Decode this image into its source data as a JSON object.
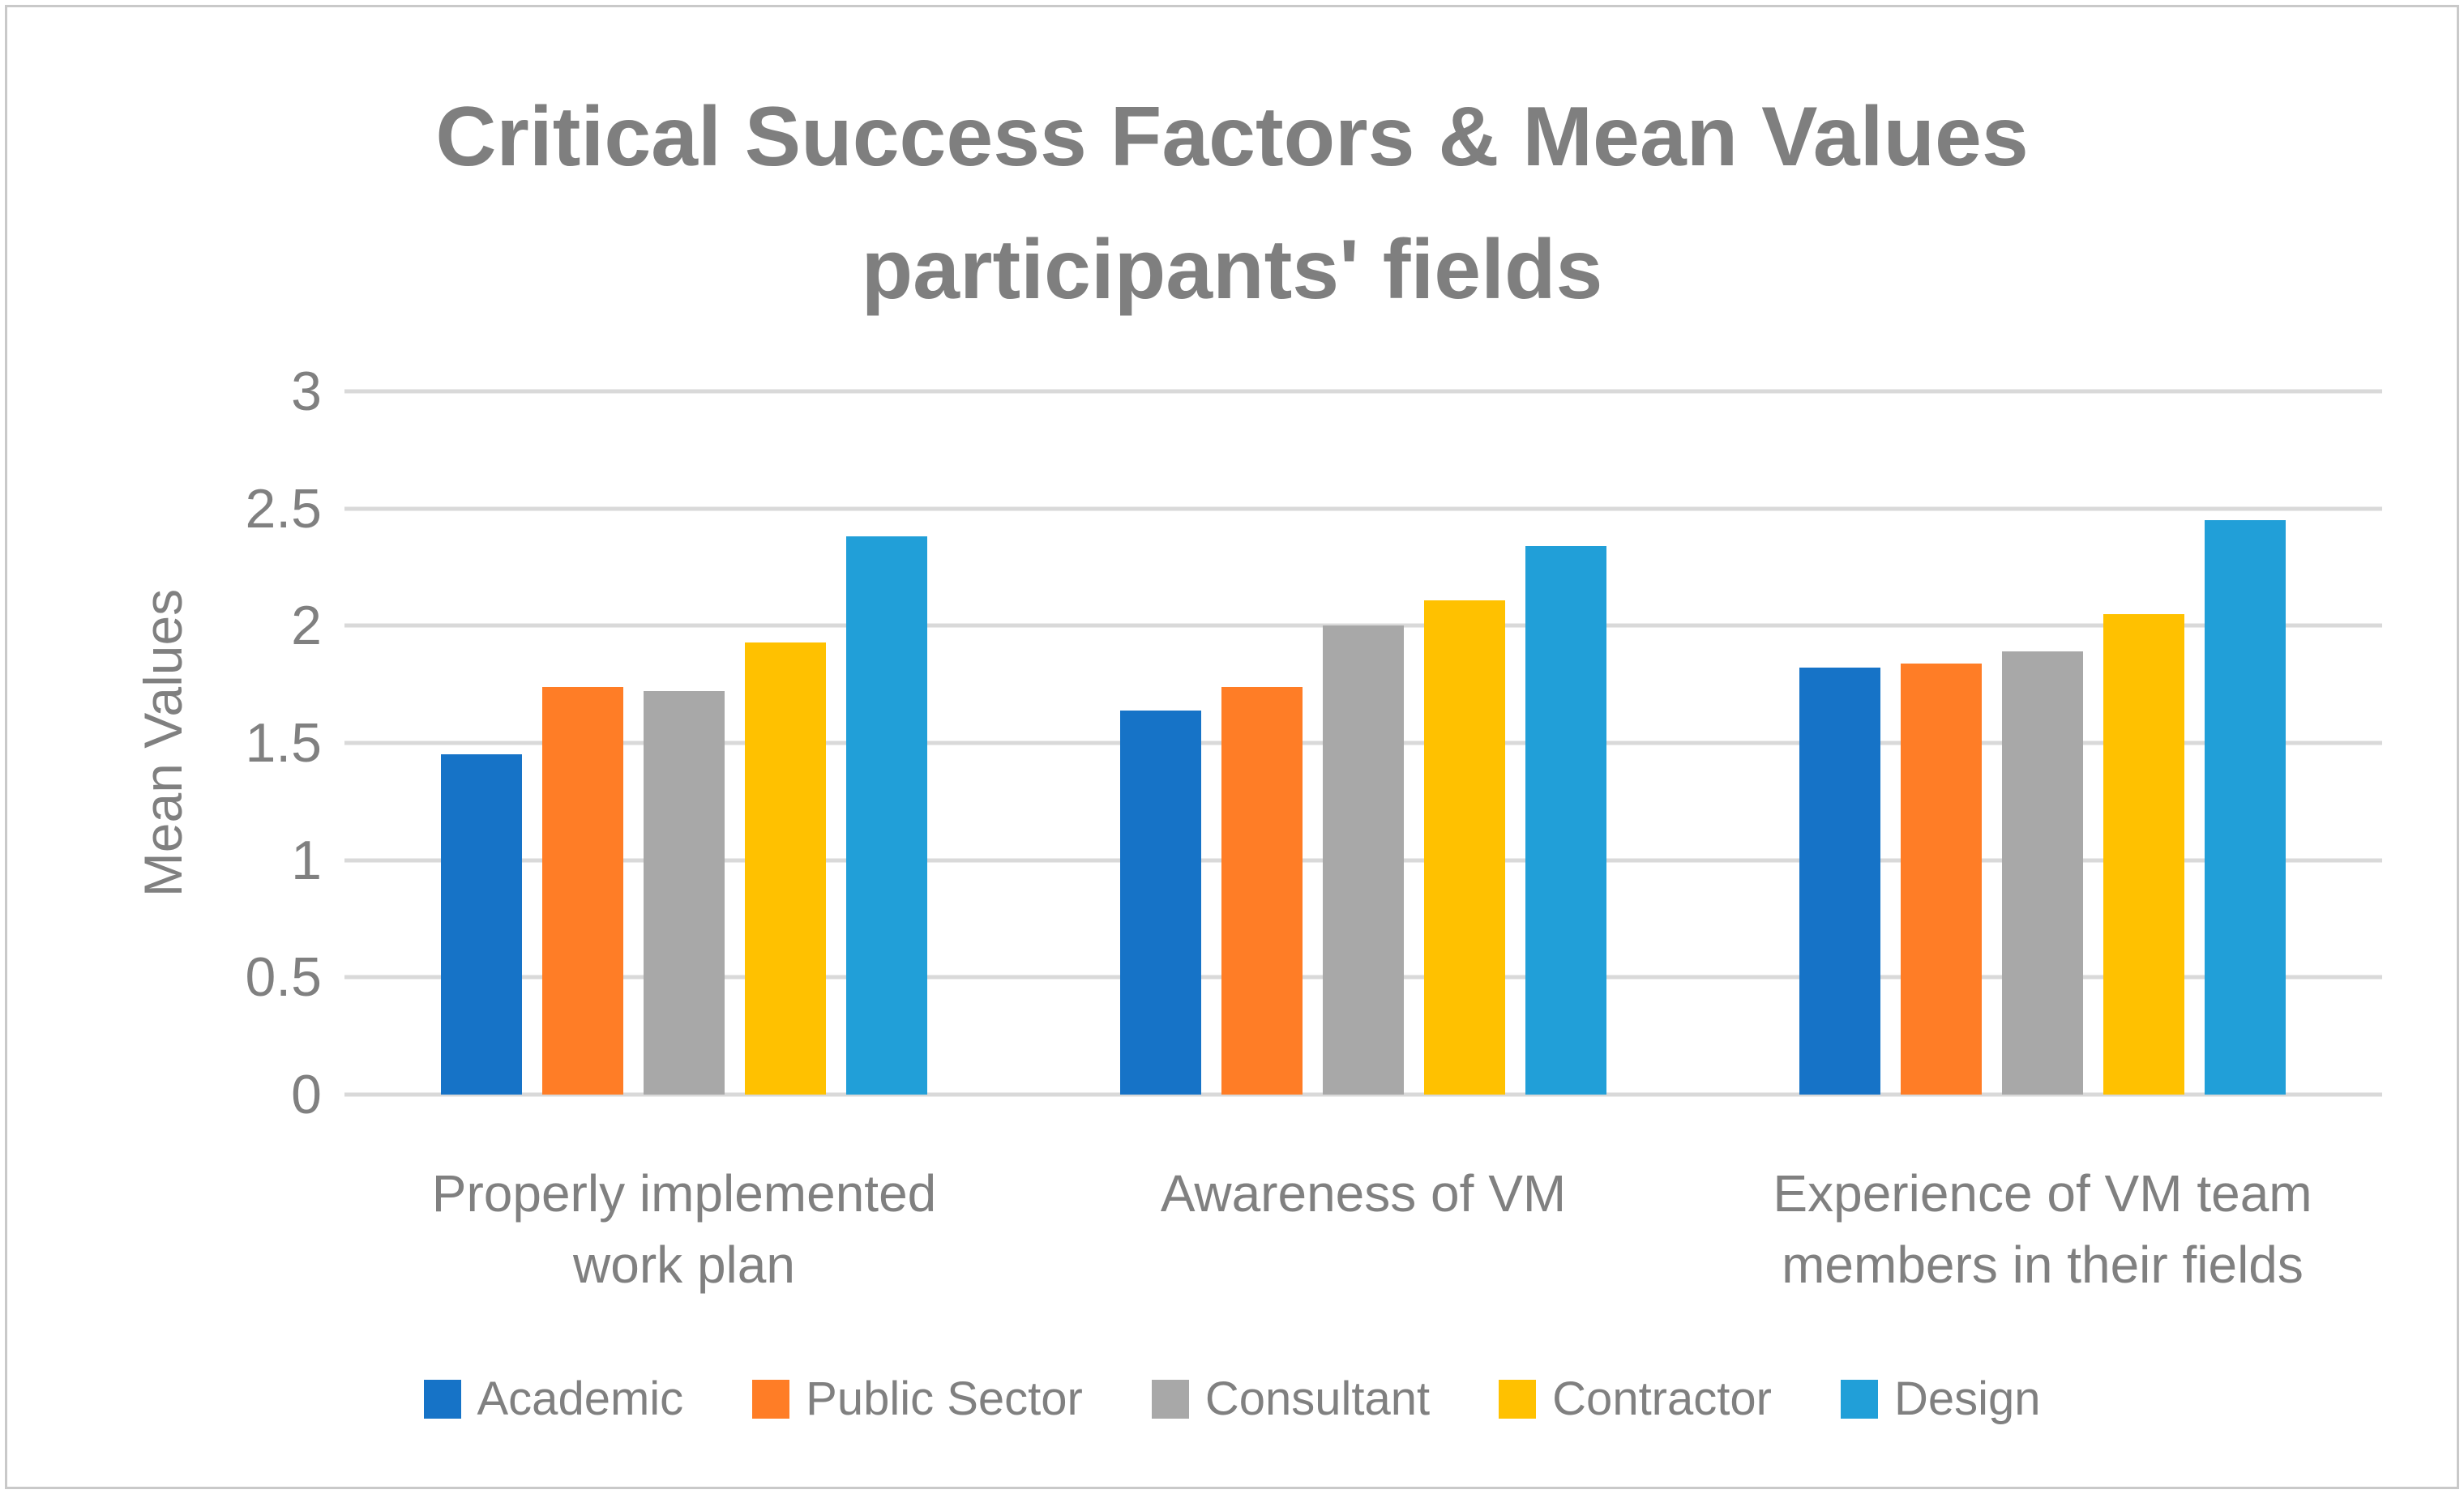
{
  "title": {
    "lines": [
      "Critical Success Factors & Mean Values",
      "participants' fields"
    ]
  },
  "chart_data": {
    "type": "bar",
    "title": "Critical Success Factors & Mean Values participants' fields",
    "xlabel": "",
    "ylabel": "Mean Values",
    "ylim": [
      0,
      3
    ],
    "ytick_step": 0.5,
    "yticks_top_to_bottom": [
      "3",
      "2.5",
      "2",
      "1.5",
      "1",
      "0.5",
      "0"
    ],
    "grid": true,
    "legend_position": "bottom",
    "categories": [
      "Properly implemented work plan",
      "Awareness of VM",
      "Experience of VM team members in their fields"
    ],
    "series": [
      {
        "name": "Academic",
        "color": "#1673C7",
        "values": [
          1.45,
          1.64,
          1.82
        ]
      },
      {
        "name": "Public Sector",
        "color": "#FF7D26",
        "values": [
          1.74,
          1.74,
          1.84
        ]
      },
      {
        "name": "Consultant",
        "color": "#A8A8A8",
        "values": [
          1.72,
          2.0,
          1.89
        ]
      },
      {
        "name": "Contractor",
        "color": "#FFC100",
        "values": [
          1.93,
          2.11,
          2.05
        ]
      },
      {
        "name": "Design",
        "color": "#219FD8",
        "values": [
          2.38,
          2.34,
          2.45
        ]
      }
    ]
  },
  "colors": {
    "text": "#808080",
    "title_text": "#7F7F7F",
    "gridline": "#D9D9D9",
    "frame_border": "#C9C9C9",
    "background": "#FFFFFF"
  }
}
